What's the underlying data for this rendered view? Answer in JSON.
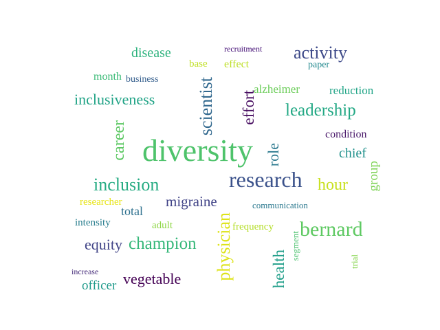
{
  "words": [
    {
      "text": "diversity",
      "color": "#4ec36b"
    },
    {
      "text": "research",
      "color": "#3b528b"
    },
    {
      "text": "bernard",
      "color": "#5ec962"
    },
    {
      "text": "inclusion",
      "color": "#25ab82"
    },
    {
      "text": "champion",
      "color": "#35b779"
    },
    {
      "text": "activity",
      "color": "#3e4a89"
    },
    {
      "text": "leadership",
      "color": "#22a884"
    },
    {
      "text": "inclusiveness",
      "color": "#20a386"
    },
    {
      "text": "hour",
      "color": "#c8e020"
    },
    {
      "text": "migraine",
      "color": "#404387"
    },
    {
      "text": "equity",
      "color": "#414487"
    },
    {
      "text": "vegetable",
      "color": "#440154"
    },
    {
      "text": "disease",
      "color": "#2db27d"
    },
    {
      "text": "officer",
      "color": "#1f9a8a"
    },
    {
      "text": "chief",
      "color": "#21918c"
    },
    {
      "text": "reduction",
      "color": "#20a486"
    },
    {
      "text": "alzheimer",
      "color": "#6ccd5a"
    },
    {
      "text": "condition",
      "color": "#481668"
    },
    {
      "text": "total",
      "color": "#2d708e"
    },
    {
      "text": "intensity",
      "color": "#287d8e"
    },
    {
      "text": "month",
      "color": "#3aba76"
    },
    {
      "text": "business",
      "color": "#355f8d"
    },
    {
      "text": "base",
      "color": "#c0df25"
    },
    {
      "text": "effect",
      "color": "#bddf26"
    },
    {
      "text": "paper",
      "color": "#23898e"
    },
    {
      "text": "recruitment",
      "color": "#440f76"
    },
    {
      "text": "researcher",
      "color": "#e7e419"
    },
    {
      "text": "communication",
      "color": "#2a788e"
    },
    {
      "text": "frequency",
      "color": "#b5de2b"
    },
    {
      "text": "adult",
      "color": "#8ed645"
    },
    {
      "text": "increase",
      "color": "#472d7b"
    },
    {
      "text": "scientist",
      "color": "#31688e"
    },
    {
      "text": "effort",
      "color": "#470d60"
    },
    {
      "text": "career",
      "color": "#5cc863"
    },
    {
      "text": "role",
      "color": "#2a788e"
    },
    {
      "text": "group",
      "color": "#7ad151"
    },
    {
      "text": "physician",
      "color": "#dde318"
    },
    {
      "text": "health",
      "color": "#1f9e89"
    },
    {
      "text": "segment",
      "color": "#4ac16d"
    },
    {
      "text": "trial",
      "color": "#84d44b"
    }
  ]
}
